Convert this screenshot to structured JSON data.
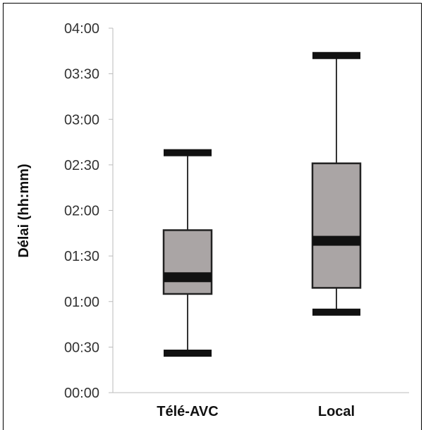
{
  "chart_data": {
    "type": "boxplot",
    "ylabel": "Délai (hh:mm)",
    "y_unit": "minutes",
    "ylim": [
      0,
      240
    ],
    "y_ticks": [
      0,
      30,
      60,
      90,
      120,
      150,
      180,
      210,
      240
    ],
    "y_tick_labels": [
      "00:00",
      "00:30",
      "01:00",
      "01:30",
      "02:00",
      "02:30",
      "03:00",
      "03:30",
      "04:00"
    ],
    "categories": [
      "Télé-AVC",
      "Local"
    ],
    "boxes": [
      {
        "category": "Télé-AVC",
        "min": 26,
        "q1": 65,
        "median": 76,
        "q3": 107,
        "max": 158
      },
      {
        "category": "Local",
        "min": 53,
        "q1": 69,
        "median": 100,
        "q3": 151,
        "max": 222
      }
    ],
    "colors": {
      "box_fill": "#aaa5a5",
      "box_edge": "#222222",
      "median": "#111111",
      "whisker": "#333333",
      "axis": "#bbbbbb"
    }
  }
}
